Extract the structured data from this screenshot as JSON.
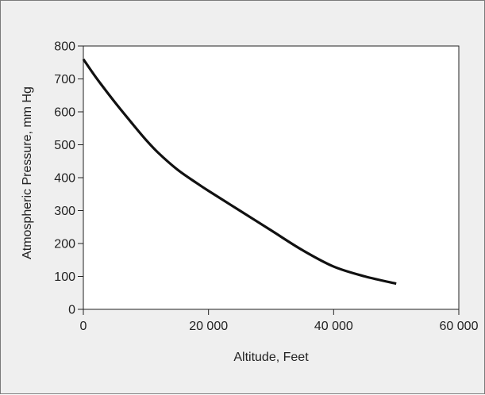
{
  "chart_data": {
    "type": "line",
    "title": "",
    "xlabel": "Altitude, Feet",
    "ylabel": "Atmospheric Pressure, mm Hg",
    "xlim": [
      0,
      60000
    ],
    "ylim": [
      0,
      800
    ],
    "x_ticks": [
      0,
      20000,
      40000,
      60000
    ],
    "x_tick_labels": [
      "0",
      "20 000",
      "40 000",
      "60 000"
    ],
    "y_ticks": [
      0,
      100,
      200,
      300,
      400,
      500,
      600,
      700,
      800
    ],
    "y_tick_labels": [
      "0",
      "100",
      "200",
      "300",
      "400",
      "500",
      "600",
      "700",
      "800"
    ],
    "grid": false,
    "series": [
      {
        "x": [
          0,
          2000,
          5000,
          8000,
          10000,
          12000,
          15000,
          18000,
          20000,
          25000,
          30000,
          35000,
          40000,
          45000,
          50000
        ],
        "y": [
          760,
          705,
          630,
          560,
          515,
          475,
          425,
          385,
          360,
          300,
          240,
          180,
          130,
          100,
          78
        ]
      }
    ],
    "colors": {
      "line": "#111111",
      "background": "#efefef",
      "plot_area": "#ffffff",
      "axis": "#222222"
    }
  }
}
